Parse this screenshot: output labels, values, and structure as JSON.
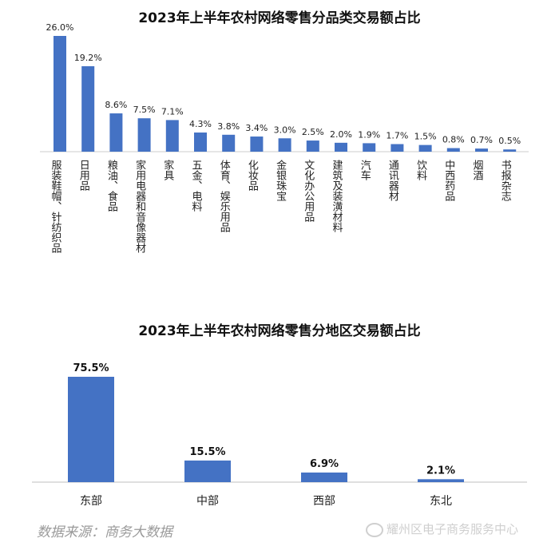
{
  "chart_data": [
    {
      "type": "bar",
      "title": "2023年上半年农村网络零售分品类交易额占比",
      "categories": [
        "服装鞋帽、针纺织品",
        "日用品",
        "粮油、食品",
        "家用电器和音像器材",
        "家具",
        "五金、电料",
        "体育、娱乐用品",
        "化妆品",
        "金银珠宝",
        "文化办公用品",
        "建筑及装潢材料",
        "汽车",
        "通讯器材",
        "饮料",
        "中西药品",
        "烟酒",
        "书报杂志"
      ],
      "values": [
        26.0,
        19.2,
        8.6,
        7.5,
        7.1,
        4.3,
        3.8,
        3.4,
        3.0,
        2.5,
        2.0,
        1.9,
        1.7,
        1.5,
        0.8,
        0.7,
        0.5
      ],
      "value_labels": [
        "26.0%",
        "19.2%",
        "8.6%",
        "7.5%",
        "7.1%",
        "4.3%",
        "3.8%",
        "3.4%",
        "3.0%",
        "2.5%",
        "2.0%",
        "1.9%",
        "1.7%",
        "1.5%",
        "0.8%",
        "0.7%",
        "0.5%"
      ],
      "xlabel": "",
      "ylabel": "",
      "ylim": [
        0,
        26.0
      ],
      "grid": false,
      "color": "#4472C4"
    },
    {
      "type": "bar",
      "title": "2023年上半年农村网络零售分地区交易额占比",
      "categories": [
        "东部",
        "中部",
        "西部",
        "东北"
      ],
      "values": [
        75.5,
        15.5,
        6.9,
        2.1
      ],
      "value_labels": [
        "75.5%",
        "15.5%",
        "6.9%",
        "2.1%"
      ],
      "xlabel": "",
      "ylabel": "",
      "ylim": [
        0,
        75.5
      ],
      "grid": false,
      "color": "#4472C4"
    }
  ],
  "source": "数据来源：商务大数据",
  "watermark": "耀州区电子商务服务中心",
  "watermark_icon": "wechat-icon"
}
